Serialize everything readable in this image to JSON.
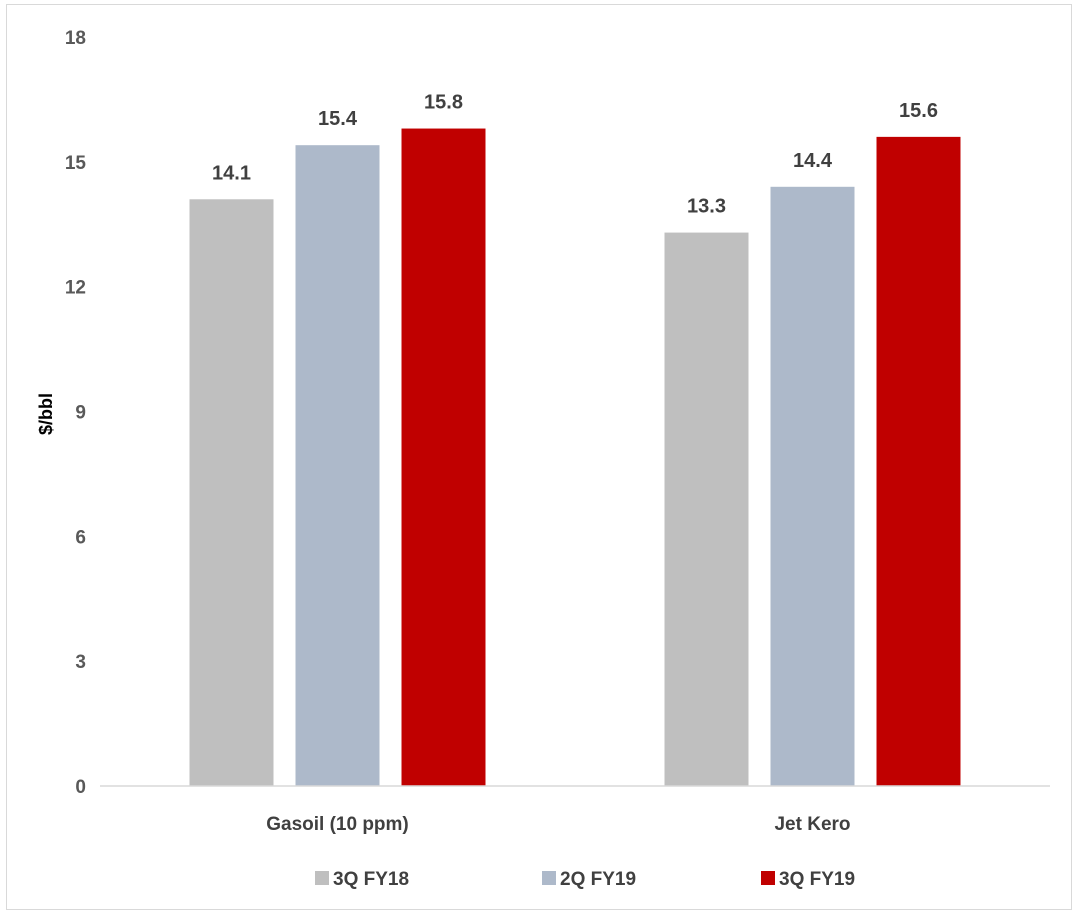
{
  "chart_data": {
    "type": "bar",
    "categories": [
      "Gasoil (10 ppm)",
      "Jet Kero"
    ],
    "series": [
      {
        "name": "3Q FY18",
        "color": "#bfbfbf",
        "values": [
          14.1,
          13.3
        ]
      },
      {
        "name": "2Q FY19",
        "color": "#adb9ca",
        "values": [
          15.4,
          14.4
        ]
      },
      {
        "name": "3Q FY19",
        "color": "#c00000",
        "values": [
          15.8,
          15.6
        ]
      }
    ],
    "data_labels": [
      [
        "14.1",
        "13.3"
      ],
      [
        "15.4",
        "14.4"
      ],
      [
        "15.8",
        "15.6"
      ]
    ],
    "ylabel": "$/bbl",
    "ylim": [
      0,
      18
    ],
    "yticks": [
      0,
      3,
      6,
      9,
      12,
      15,
      18
    ],
    "ytick_labels": [
      "0",
      "3",
      "6",
      "9",
      "12",
      "15",
      "18"
    ],
    "grid": false,
    "legend_position": "bottom"
  }
}
